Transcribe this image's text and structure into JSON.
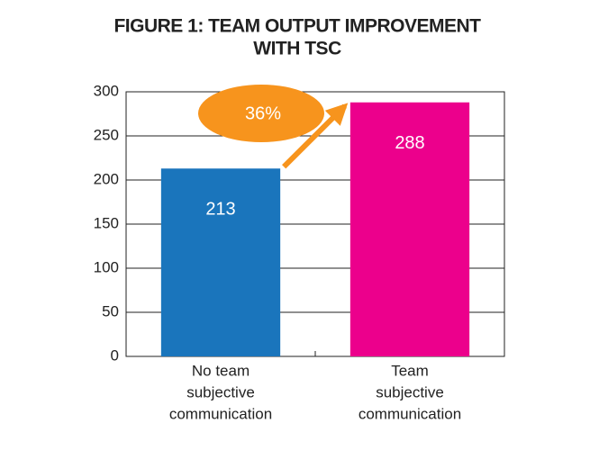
{
  "chart_data": {
    "type": "bar",
    "title": [
      "FIGURE 1: TEAM OUTPUT IMPROVEMENT",
      "WITH TSC"
    ],
    "categories": [
      [
        "No team",
        "subjective",
        "communication"
      ],
      [
        "Team",
        "subjective",
        "communication"
      ]
    ],
    "values": [
      213,
      288
    ],
    "colors": [
      "#1a75bc",
      "#ec008c"
    ],
    "ylim": [
      0,
      300
    ],
    "yticks": [
      0,
      50,
      100,
      150,
      200,
      250,
      300
    ],
    "grid": true,
    "annotation": "36%",
    "annotation_color": "#f7941d"
  }
}
